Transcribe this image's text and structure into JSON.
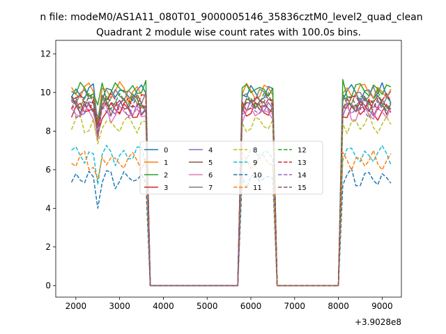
{
  "chart_data": {
    "type": "line",
    "suptitle": "n file: modeM0/AS1A11_080T01_9000005146_35836cztM0_level2_quad_clean",
    "title": "Quadrant 2 module wise count rates with 100.0s bins.",
    "xlabel": "",
    "ylabel": "",
    "x_offset_label": "+3.9028e8",
    "xlim": [
      1540,
      9440
    ],
    "ylim": [
      -0.6,
      12.7
    ],
    "xticks": [
      2000,
      3000,
      4000,
      5000,
      6000,
      7000,
      8000,
      9000
    ],
    "yticks": [
      0,
      2,
      4,
      6,
      8,
      10,
      12
    ],
    "legend_position": "center",
    "legend_columns": 4,
    "series": [
      {
        "name": "0",
        "color": "#1f77b4",
        "dash": "solid",
        "base": 10.0,
        "cycle": 6,
        "ph": 0
      },
      {
        "name": "1",
        "color": "#ff7f0e",
        "dash": "solid",
        "base": 10.1,
        "cycle": 7,
        "ph": 1
      },
      {
        "name": "2",
        "color": "#2ca02c",
        "dash": "solid",
        "base": 10.2,
        "cycle": 5,
        "ph": 2
      },
      {
        "name": "3",
        "color": "#d62728",
        "dash": "solid",
        "base": 9.1,
        "cycle": 8,
        "ph": 3
      },
      {
        "name": "4",
        "color": "#9467bd",
        "dash": "solid",
        "base": 9.3,
        "cycle": 6,
        "ph": 4
      },
      {
        "name": "5",
        "color": "#8c564b",
        "dash": "solid",
        "base": 9.4,
        "cycle": 7,
        "ph": 5
      },
      {
        "name": "6",
        "color": "#e377c2",
        "dash": "solid",
        "base": 9.0,
        "cycle": 5,
        "ph": 1
      },
      {
        "name": "7",
        "color": "#7f7f7f",
        "dash": "solid",
        "base": 9.8,
        "cycle": 8,
        "ph": 2
      },
      {
        "name": "8",
        "color": "#bcbd22",
        "dash": "dashed",
        "base": 8.4,
        "cycle": 6,
        "ph": 3
      },
      {
        "name": "9",
        "color": "#17becf",
        "dash": "dashed",
        "base": 6.8,
        "cycle": 7,
        "ph": 4
      },
      {
        "name": "10",
        "color": "#1f77b4",
        "dash": "dashed",
        "base": 5.6,
        "cycle": 5,
        "ph": 0
      },
      {
        "name": "11",
        "color": "#ff7f0e",
        "dash": "dashed",
        "base": 6.5,
        "cycle": 6,
        "ph": 2
      },
      {
        "name": "12",
        "color": "#2ca02c",
        "dash": "dashed",
        "base": 9.6,
        "cycle": 8,
        "ph": 1
      },
      {
        "name": "13",
        "color": "#d62728",
        "dash": "dashed",
        "base": 9.5,
        "cycle": 7,
        "ph": 3
      },
      {
        "name": "14",
        "color": "#9467bd",
        "dash": "dashed",
        "base": 9.2,
        "cycle": 6,
        "ph": 5
      },
      {
        "name": "15",
        "color": "#8c564b",
        "dash": "dashed",
        "base": 9.5,
        "cycle": 5,
        "ph": 4
      }
    ],
    "x_start": 1900,
    "x_end": 9220,
    "x_step": 100,
    "active_intervals": [
      [
        1900,
        3600
      ],
      [
        5800,
        6500
      ],
      [
        8100,
        9200
      ]
    ],
    "valleys": [
      2500
    ],
    "dips": [
      6600,
      8000
    ]
  }
}
